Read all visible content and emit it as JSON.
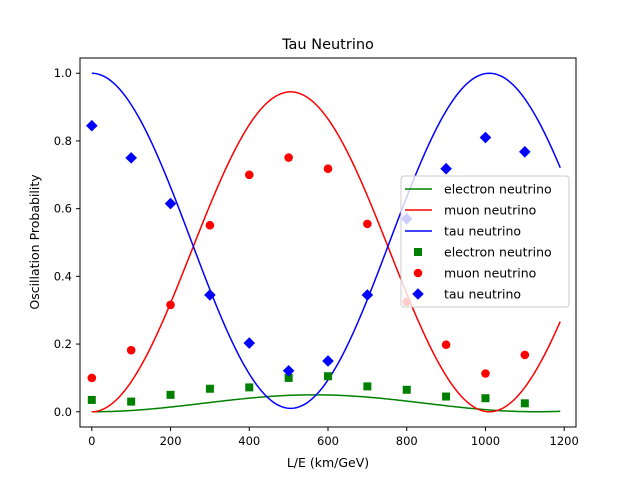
{
  "chart_data": {
    "type": "line",
    "title": "Tau Neutrino",
    "xlabel": "L/E (km/GeV)",
    "ylabel": "Oscillation Probability",
    "xlim": [
      -30,
      1230
    ],
    "ylim": [
      -0.045,
      1.045
    ],
    "xticks": [
      0,
      200,
      400,
      600,
      800,
      1000,
      1200
    ],
    "yticks": [
      0.0,
      0.2,
      0.4,
      0.6,
      0.8,
      1.0
    ],
    "legend_position": "center-right",
    "curves": [
      {
        "name": "electron neutrino",
        "color": "#008000",
        "amplitude": 0.05,
        "offset": 0.0,
        "period": 1130,
        "kind": "rise"
      },
      {
        "name": "muon neutrino",
        "color": "#ff0000",
        "amplitude": 0.945,
        "offset": 0.0,
        "period": 1010,
        "kind": "rise"
      },
      {
        "name": "tau neutrino",
        "color": "#0000ff",
        "amplitude": 0.99,
        "offset": 1.0,
        "period": 1010,
        "kind": "fall"
      }
    ],
    "curve_x_range": [
      0,
      1190
    ],
    "scatter_series": [
      {
        "name": "electron neutrino",
        "color": "#008000",
        "marker": "square",
        "x": [
          0,
          100,
          200,
          300,
          400,
          500,
          600,
          700,
          800,
          900,
          1000,
          1100
        ],
        "y": [
          0.035,
          0.03,
          0.05,
          0.068,
          0.072,
          0.1,
          0.105,
          0.075,
          0.065,
          0.045,
          0.04,
          0.025
        ]
      },
      {
        "name": "muon neutrino",
        "color": "#ff0000",
        "marker": "circle",
        "x": [
          0,
          100,
          200,
          300,
          400,
          500,
          600,
          700,
          800,
          900,
          1000,
          1100
        ],
        "y": [
          0.1,
          0.182,
          0.316,
          0.551,
          0.7,
          0.751,
          0.718,
          0.555,
          0.325,
          0.198,
          0.113,
          0.168
        ]
      },
      {
        "name": "tau neutrino",
        "color": "#0000ff",
        "marker": "diamond",
        "x": [
          0,
          100,
          200,
          300,
          400,
          500,
          600,
          700,
          800,
          900,
          1000,
          1100
        ],
        "y": [
          0.845,
          0.75,
          0.615,
          0.345,
          0.203,
          0.121,
          0.15,
          0.345,
          0.57,
          0.718,
          0.81,
          0.768
        ]
      }
    ]
  }
}
